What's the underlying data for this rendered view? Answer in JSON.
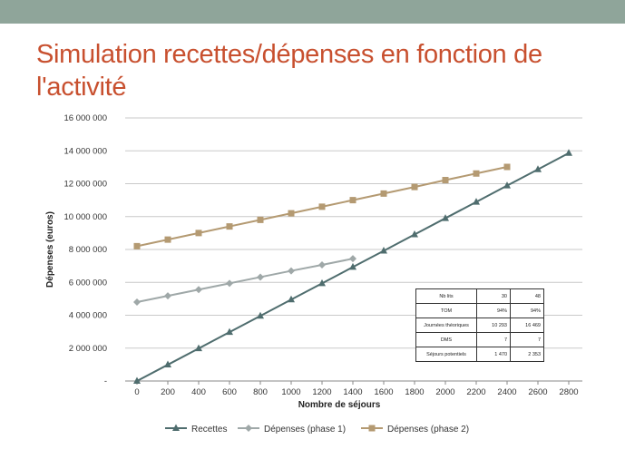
{
  "slide": {
    "title": "Simulation recettes/dépenses en fonction de l'activité"
  },
  "colors": {
    "topbar": "#8fa59a",
    "title": "#c8502f",
    "grid": "#c9c9c9",
    "axis": "#8a8a8a"
  },
  "chart_data": {
    "type": "line",
    "title": "",
    "xlabel": "Nombre de séjours",
    "ylabel": "Dépenses (euros)",
    "xlim": [
      0,
      2800
    ],
    "ylim": [
      0,
      16000000
    ],
    "x_ticks": [
      "0",
      "200",
      "400",
      "600",
      "800",
      "1000",
      "1200",
      "1400",
      "1600",
      "1800",
      "2000",
      "2200",
      "2400",
      "2600",
      "2800"
    ],
    "y_ticks": [
      "-",
      "2 000 000",
      "4 000 000",
      "6 000 000",
      "8 000 000",
      "10 000 000",
      "12 000 000",
      "14 000 000",
      "16 000 000"
    ],
    "grid": "horizontal",
    "legend_position": "bottom",
    "series": [
      {
        "name": "Recettes",
        "color": "#4f6d6e",
        "marker": "triangle",
        "x": [
          0,
          200,
          400,
          600,
          800,
          1000,
          1200,
          1400,
          1600,
          1800,
          2000,
          2200,
          2400,
          2600,
          2800
        ],
        "y": [
          0,
          990000,
          1980000,
          2970000,
          3960000,
          4950000,
          5940000,
          6930000,
          7920000,
          8910000,
          9900000,
          10890000,
          11880000,
          12870000,
          13860000
        ]
      },
      {
        "name": "Dépenses (phase 1)",
        "color": "#9fa8a8",
        "marker": "diamond",
        "x": [
          0,
          200,
          400,
          600,
          800,
          1000,
          1200,
          1400
        ],
        "y": [
          4800000,
          5180000,
          5560000,
          5940000,
          6320000,
          6700000,
          7060000,
          7440000
        ]
      },
      {
        "name": "Dépenses (phase 2)",
        "color": "#b49a72",
        "marker": "square",
        "x": [
          0,
          200,
          400,
          600,
          800,
          1000,
          1200,
          1400,
          1600,
          1800,
          2000,
          2200,
          2400
        ],
        "y": [
          8200000,
          8600000,
          9000000,
          9400000,
          9800000,
          10200000,
          10600000,
          11000000,
          11400000,
          11800000,
          12220000,
          12620000,
          13020000
        ]
      }
    ],
    "table": {
      "rows": [
        {
          "label": "Nb lits",
          "c1": "30",
          "c2": "48"
        },
        {
          "label": "TOM",
          "c1": "94%",
          "c2": "94%"
        },
        {
          "label": "Journées théoriques",
          "c1": "10 293",
          "c2": "16 469"
        },
        {
          "label": "DMS",
          "c1": "7",
          "c2": "7"
        },
        {
          "label": "Séjours potentiels",
          "c1": "1 470",
          "c2": "2 353"
        }
      ]
    }
  }
}
